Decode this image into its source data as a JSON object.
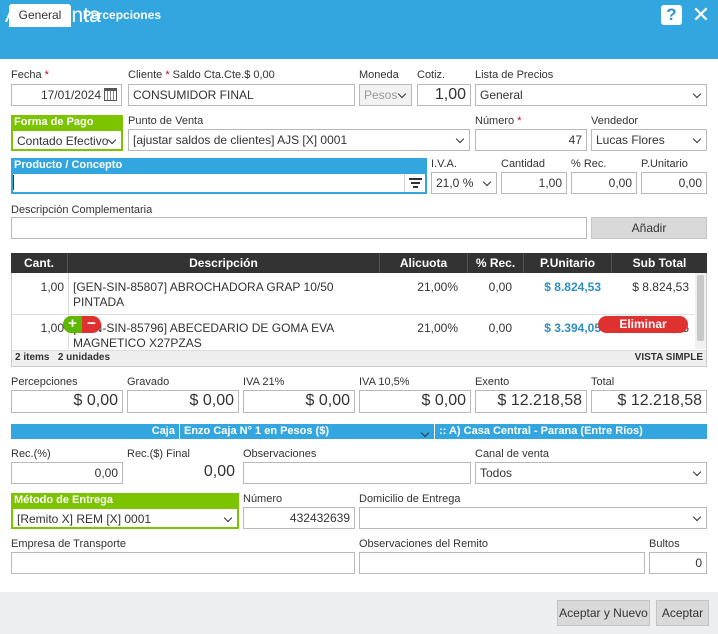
{
  "window": {
    "title": "Alta Venta",
    "help": "?",
    "close": "✕"
  },
  "tabs": [
    {
      "label": "General"
    },
    {
      "label": "Percepciones"
    }
  ],
  "header": {
    "fecha_label": "Fecha",
    "fecha_value": "17/01/2024",
    "cliente_label": "Cliente",
    "saldo_label": "Saldo Cta.Cte.$ 0,00",
    "cliente_value": "CONSUMIDOR FINAL",
    "moneda_label": "Moneda",
    "moneda_value": "Pesos",
    "cotiz_label": "Cotiz.",
    "cotiz_value": "1,00",
    "lista_label": "Lista de Precios",
    "lista_value": "General",
    "forma_pago_label": "Forma de Pago",
    "forma_pago_value": "Contado Efectivo",
    "punto_venta_label": "Punto de Venta",
    "punto_venta_value": "[ajustar saldos de clientes] AJS [X] 0001",
    "numero_label": "Número",
    "numero_value": "47",
    "vendedor_label": "Vendedor",
    "vendedor_value": "Lucas Flores"
  },
  "product": {
    "label": "Producto / Concepto",
    "value": "",
    "iva_label": "I.V.A.",
    "iva_value": "21,0 %",
    "cantidad_label": "Cantidad",
    "cantidad_value": "1,00",
    "rec_label": "% Rec.",
    "rec_value": "0,00",
    "punit_label": "P.Unitario",
    "punit_value": "0,00",
    "desc_label": "Descripción Complementaria",
    "desc_value": "",
    "add_button": "Añadir"
  },
  "table": {
    "headers": [
      "Cant.",
      "Descripción",
      "Alicuota",
      "% Rec.",
      "P.Unitario",
      "Sub Total"
    ],
    "rows": [
      {
        "cant": "1,00",
        "desc1": "[GEN-SIN-85807] ABROCHADORA GRAP 10/50",
        "desc2": "PINTADA",
        "alic": "21,00%",
        "rec": "0,00",
        "punit": "$ 8.824,53",
        "sub": "$ 8.824,53"
      },
      {
        "cant": "1,00",
        "desc1": "[GEN-SIN-85796] ABECEDARIO DE GOMA EVA",
        "desc2": "MAGNETICO X27PZAS",
        "alic": "21,00%",
        "rec": "0,00",
        "punit": "$ 3.394,05",
        "sub": "$ 3.394,05"
      }
    ],
    "eliminar": "Eliminar",
    "summary_items": "2 items",
    "summary_units": "2 unidades",
    "vista": "VISTA SIMPLE"
  },
  "totals": {
    "percepciones_label": "Percepciones",
    "percepciones": "$ 0,00",
    "gravado_label": "Gravado",
    "gravado": "$ 0,00",
    "iva21_label": "IVA 21%",
    "iva21": "$ 0,00",
    "iva105_label": "IVA 10,5%",
    "iva105": "$ 0,00",
    "exento_label": "Exento",
    "exento": "$ 12.218,58",
    "total_label": "Total",
    "total": "$ 12.218,58"
  },
  "caja": {
    "label": "Caja Seleccionada:",
    "value": "Enzo Caja N° 1 en Pesos ($)",
    "sucursal": ":: A) Casa Central - Parana (Entre Ríos)"
  },
  "extra": {
    "rec_pct_label": "Rec.(%)",
    "rec_pct": "0,00",
    "rec_final_label": "Rec.($) Final",
    "rec_final": "0,00",
    "obs_label": "Observaciones",
    "obs": "",
    "canal_label": "Canal de venta",
    "canal": "Todos"
  },
  "entrega": {
    "metodo_label": "Método de Entrega",
    "metodo": "[Remito X] REM [X] 0001",
    "numero_label": "Número",
    "numero": "432432639",
    "domicilio_label": "Domicilio de Entrega",
    "domicilio": "",
    "empresa_label": "Empresa de Transporte",
    "empresa": "",
    "obs_remito_label": "Observaciones del Remito",
    "obs_remito": "",
    "bultos_label": "Bultos",
    "bultos": "0"
  },
  "footer": {
    "accept_new": "Aceptar y Nuevo",
    "accept": "Aceptar"
  }
}
